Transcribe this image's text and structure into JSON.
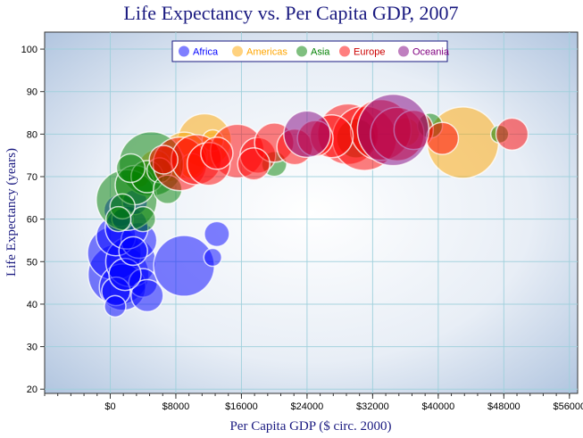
{
  "chart_data": {
    "type": "scatter",
    "subtype": "bubble",
    "title": "Life Expectancy vs. Per Capita GDP, 2007",
    "xlabel": "Per Capita GDP ($ circ. 2000)",
    "ylabel": "Life Expectancy (years)",
    "xlim": [
      -8000,
      57000
    ],
    "ylim": [
      19,
      104
    ],
    "xticks": [
      0,
      8000,
      16000,
      24000,
      32000,
      40000,
      48000,
      56000
    ],
    "xtick_labels": [
      "$0",
      "$8000",
      "$16000",
      "$24000",
      "$32000",
      "$40000",
      "$48000",
      "$56000"
    ],
    "yticks": [
      20,
      30,
      40,
      50,
      60,
      70,
      80,
      90,
      100
    ],
    "ytick_labels": [
      "20",
      "30",
      "40",
      "50",
      "60",
      "70",
      "80",
      "90",
      "100"
    ],
    "grid": true,
    "legend_position": "top-center",
    "series": [
      {
        "name": "Africa",
        "color": "#0000ff",
        "text_color": "#0000ff",
        "points": [
          {
            "x": 1000,
            "y": 47,
            "r": 34
          },
          {
            "x": 500,
            "y": 52,
            "r": 30
          },
          {
            "x": 1500,
            "y": 44,
            "r": 26
          },
          {
            "x": 2500,
            "y": 50,
            "r": 28
          },
          {
            "x": 700,
            "y": 56,
            "r": 22
          },
          {
            "x": 3500,
            "y": 55,
            "r": 20
          },
          {
            "x": 1200,
            "y": 62,
            "r": 18
          },
          {
            "x": 2000,
            "y": 58,
            "r": 24
          },
          {
            "x": 4000,
            "y": 45,
            "r": 16
          },
          {
            "x": 9000,
            "y": 49,
            "r": 34
          },
          {
            "x": 12500,
            "y": 51,
            "r": 10
          },
          {
            "x": 13000,
            "y": 56.5,
            "r": 14
          },
          {
            "x": 700,
            "y": 43,
            "r": 16
          },
          {
            "x": 4500,
            "y": 42,
            "r": 18
          },
          {
            "x": 3000,
            "y": 64,
            "r": 14
          },
          {
            "x": 1800,
            "y": 47,
            "r": 18
          },
          {
            "x": 600,
            "y": 39.5,
            "r": 12
          },
          {
            "x": 2800,
            "y": 52.5,
            "r": 16
          },
          {
            "x": 1500,
            "y": 60,
            "r": 12
          }
        ]
      },
      {
        "name": "Americas",
        "color": "#ffa500",
        "text_color": "#ffa500",
        "points": [
          {
            "x": 43000,
            "y": 78,
            "r": 40
          },
          {
            "x": 11500,
            "y": 78.5,
            "r": 30
          },
          {
            "x": 9000,
            "y": 75,
            "r": 26
          },
          {
            "x": 7000,
            "y": 73,
            "r": 20
          },
          {
            "x": 5500,
            "y": 72.5,
            "r": 18
          },
          {
            "x": 10000,
            "y": 72.5,
            "r": 14
          },
          {
            "x": 3500,
            "y": 70,
            "r": 12
          },
          {
            "x": 12500,
            "y": 78.5,
            "r": 12
          },
          {
            "x": 36000,
            "y": 80.5,
            "r": 16
          }
        ]
      },
      {
        "name": "Asia",
        "color": "#008000",
        "text_color": "#008000",
        "points": [
          {
            "x": 5000,
            "y": 73,
            "r": 36
          },
          {
            "x": 2000,
            "y": 64.5,
            "r": 34
          },
          {
            "x": 3000,
            "y": 68,
            "r": 22
          },
          {
            "x": 4500,
            "y": 70,
            "r": 18
          },
          {
            "x": 2500,
            "y": 72,
            "r": 16
          },
          {
            "x": 4000,
            "y": 60,
            "r": 14
          },
          {
            "x": 6000,
            "y": 71.5,
            "r": 14
          },
          {
            "x": 20000,
            "y": 73,
            "r": 14
          },
          {
            "x": 30000,
            "y": 79,
            "r": 22
          },
          {
            "x": 47500,
            "y": 80,
            "r": 10
          },
          {
            "x": 39000,
            "y": 82,
            "r": 14
          },
          {
            "x": 1500,
            "y": 63,
            "r": 14
          },
          {
            "x": 7000,
            "y": 67,
            "r": 16
          },
          {
            "x": 1000,
            "y": 60,
            "r": 14
          }
        ]
      },
      {
        "name": "Europe",
        "color": "#ff0000",
        "text_color": "#cc0000",
        "points": [
          {
            "x": 8500,
            "y": 73,
            "r": 30
          },
          {
            "x": 10500,
            "y": 74,
            "r": 28
          },
          {
            "x": 15500,
            "y": 76,
            "r": 30
          },
          {
            "x": 12000,
            "y": 73,
            "r": 24
          },
          {
            "x": 18000,
            "y": 75,
            "r": 20
          },
          {
            "x": 20000,
            "y": 78,
            "r": 22
          },
          {
            "x": 22500,
            "y": 77,
            "r": 20
          },
          {
            "x": 29000,
            "y": 80,
            "r": 34
          },
          {
            "x": 31000,
            "y": 79,
            "r": 36
          },
          {
            "x": 33000,
            "y": 81,
            "r": 34
          },
          {
            "x": 35000,
            "y": 80,
            "r": 30
          },
          {
            "x": 37000,
            "y": 81,
            "r": 22
          },
          {
            "x": 40500,
            "y": 79,
            "r": 18
          },
          {
            "x": 49000,
            "y": 80,
            "r": 18
          },
          {
            "x": 27000,
            "y": 79.5,
            "r": 24
          },
          {
            "x": 13000,
            "y": 75.5,
            "r": 18
          },
          {
            "x": 6500,
            "y": 74,
            "r": 16
          },
          {
            "x": 17500,
            "y": 73,
            "r": 18
          },
          {
            "x": 25000,
            "y": 79,
            "r": 20
          }
        ]
      },
      {
        "name": "Oceania",
        "color": "#800080",
        "text_color": "#800080",
        "points": [
          {
            "x": 34500,
            "y": 81,
            "r": 40
          },
          {
            "x": 24000,
            "y": 80,
            "r": 26
          }
        ]
      }
    ]
  }
}
